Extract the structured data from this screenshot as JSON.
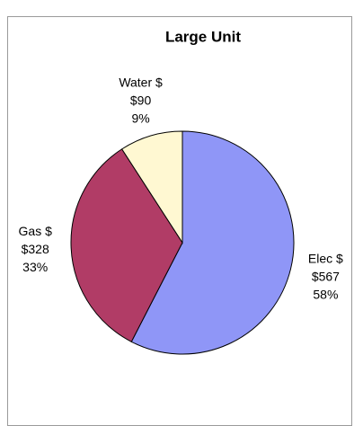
{
  "chart_data": {
    "type": "pie",
    "title": "Large Unit",
    "categories": [
      "Elec $",
      "Gas $",
      "Water $"
    ],
    "values": [
      567,
      328,
      90
    ],
    "value_labels": [
      "$567",
      "$328",
      "$90"
    ],
    "percent_labels": [
      "58%",
      "33%",
      "9%"
    ],
    "colors": [
      "#8f96f7",
      "#b13c66",
      "#fff8d2"
    ]
  }
}
